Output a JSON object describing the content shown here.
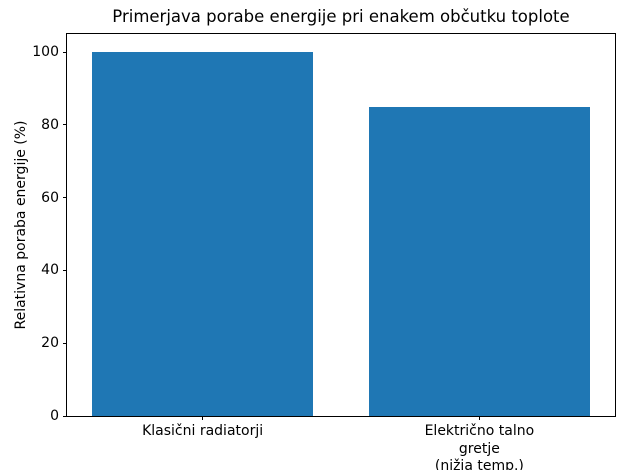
{
  "chart_data": {
    "type": "bar",
    "title": "Primerjava porabe energije pri enakem občutku toplote",
    "xlabel": "",
    "ylabel": "Relativna poraba energije (%)",
    "categories": [
      "Klasični radiatorji",
      "Električno talno gretje\n(nižja temp.)"
    ],
    "values": [
      100,
      85
    ],
    "ylim": [
      0,
      105
    ],
    "yticks": [
      0,
      20,
      40,
      60,
      80,
      100
    ],
    "bar_color": "#1f77b4",
    "grid": "off",
    "legend": "none"
  }
}
